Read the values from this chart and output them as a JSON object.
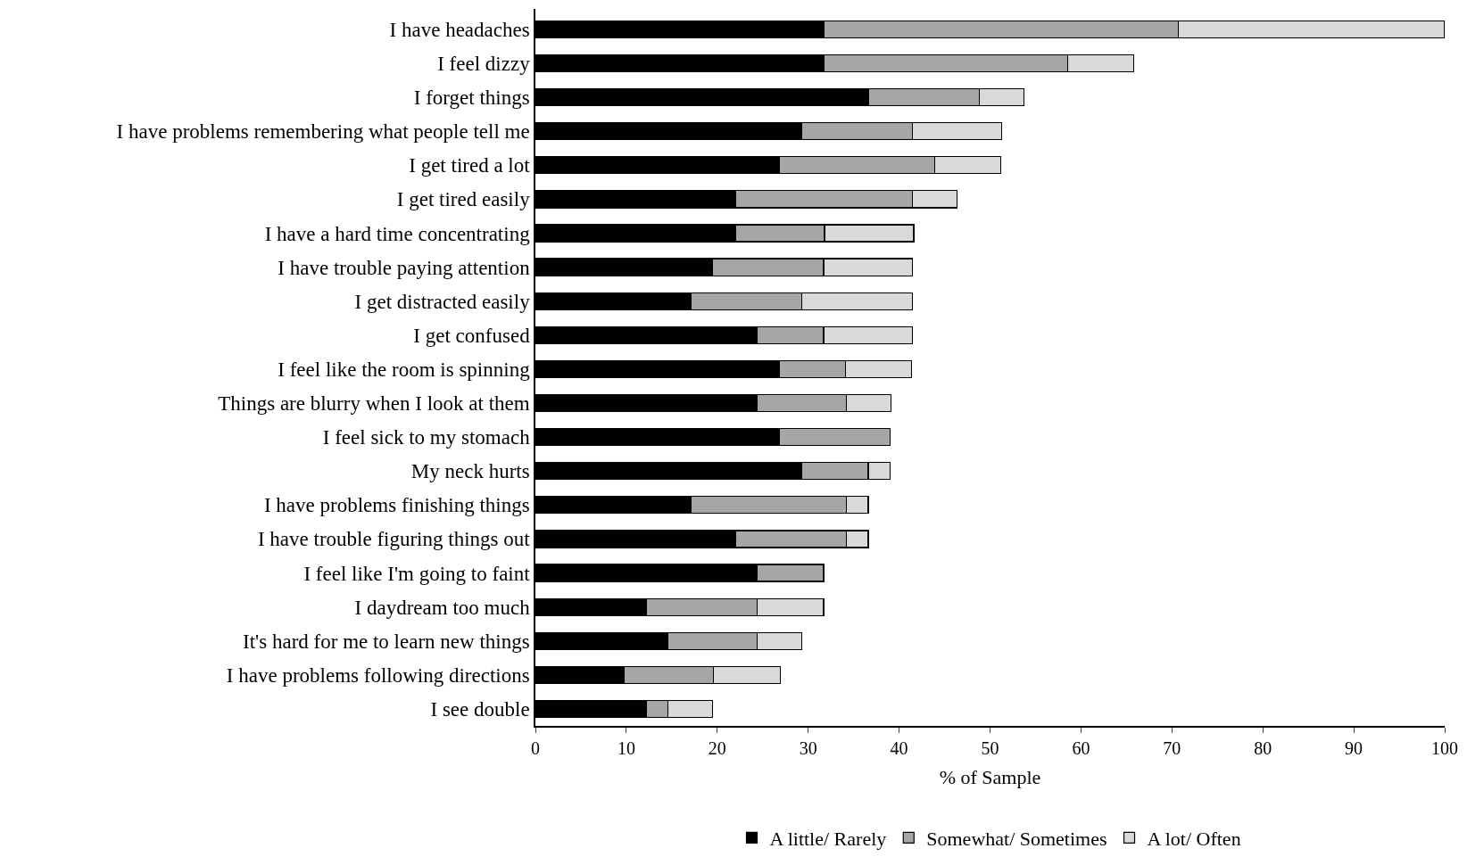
{
  "chart_data": {
    "type": "bar",
    "orientation": "horizontal",
    "stacked": true,
    "categories": [
      "I have headaches",
      "I feel dizzy",
      "I forget things",
      "I have problems remembering what people tell me",
      "I get tired a lot",
      "I get tired easily",
      "I have a hard time concentrating",
      "I have trouble paying attention",
      "I get distracted easily",
      "I get confused",
      "I feel like the room is spinning",
      "Things are blurry when I look at them",
      "I feel sick to my stomach",
      "My neck hurts",
      "I have problems finishing things",
      "I have trouble figuring things out",
      "I feel like I'm going to faint",
      "I daydream too much",
      "It's hard for me to learn new things",
      "I have problems following directions",
      "I see double"
    ],
    "series": [
      {
        "name": "A little/ Rarely",
        "color": "#000000",
        "values": [
          31.7,
          31.7,
          36.6,
          29.3,
          26.8,
          22.0,
          22.0,
          19.5,
          17.1,
          24.4,
          26.8,
          24.4,
          26.8,
          29.3,
          17.1,
          22.0,
          24.4,
          12.2,
          14.6,
          9.8,
          12.2
        ]
      },
      {
        "name": "Somewhat/ Sometimes",
        "color": "#a6a6a6",
        "values": [
          39.0,
          26.8,
          12.2,
          12.2,
          17.1,
          19.5,
          9.8,
          12.2,
          12.2,
          7.3,
          7.3,
          9.8,
          12.2,
          7.3,
          17.1,
          12.2,
          7.3,
          12.2,
          9.8,
          9.8,
          2.4
        ]
      },
      {
        "name": "A lot/ Often",
        "color": "#d9d9d9",
        "values": [
          29.3,
          7.3,
          4.9,
          9.8,
          7.3,
          4.9,
          9.8,
          9.8,
          12.2,
          9.8,
          7.3,
          4.9,
          null,
          2.4,
          2.4,
          2.4,
          null,
          7.3,
          4.9,
          7.3,
          4.9
        ]
      }
    ],
    "xlabel": "% of Sample",
    "xlim": [
      0,
      100
    ],
    "xticks": [
      0,
      10,
      20,
      30,
      40,
      50,
      60,
      70,
      80,
      90,
      100
    ],
    "legend": "bottom"
  }
}
